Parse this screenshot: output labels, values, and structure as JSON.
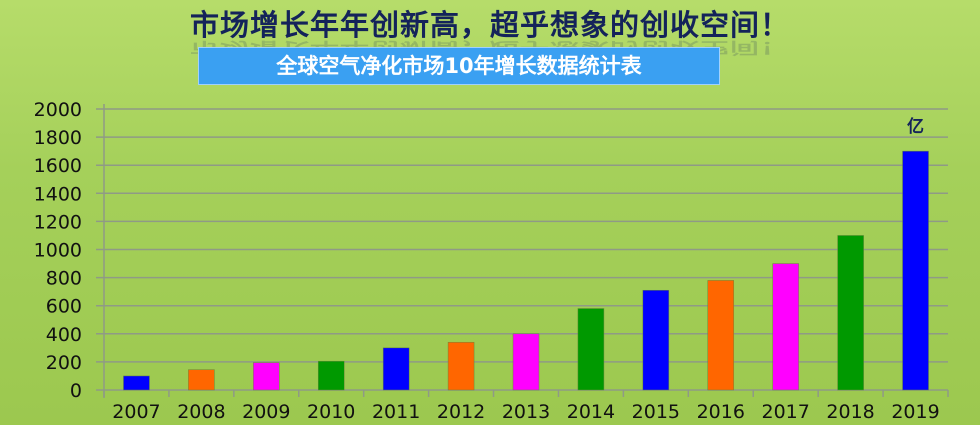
{
  "header": {
    "headline": "市场增长年年创新高，超乎想象的创收空间！",
    "subtitle": "全球空气净化市场10年增长数据统计表"
  },
  "chart_data": {
    "type": "bar",
    "title": "全球空气净化市场10年增长数据统计表",
    "unit_label": "亿",
    "categories": [
      "2007",
      "2008",
      "2009",
      "2010",
      "2011",
      "2012",
      "2013",
      "2014",
      "2015",
      "2016",
      "2017",
      "2018",
      "2019"
    ],
    "values": [
      100,
      145,
      195,
      205,
      300,
      340,
      400,
      580,
      710,
      780,
      900,
      1100,
      1700
    ],
    "colors": [
      "#0000ff",
      "#ff6600",
      "#ff00ff",
      "#009900",
      "#0000ff",
      "#ff6600",
      "#ff00ff",
      "#009900",
      "#0000ff",
      "#ff6600",
      "#ff00ff",
      "#009900",
      "#0000ff"
    ],
    "ylim": [
      0,
      2000
    ],
    "yticks": [
      0,
      200,
      400,
      600,
      800,
      1000,
      1200,
      1400,
      1600,
      1800,
      2000
    ],
    "grid": true,
    "legend": "none"
  }
}
